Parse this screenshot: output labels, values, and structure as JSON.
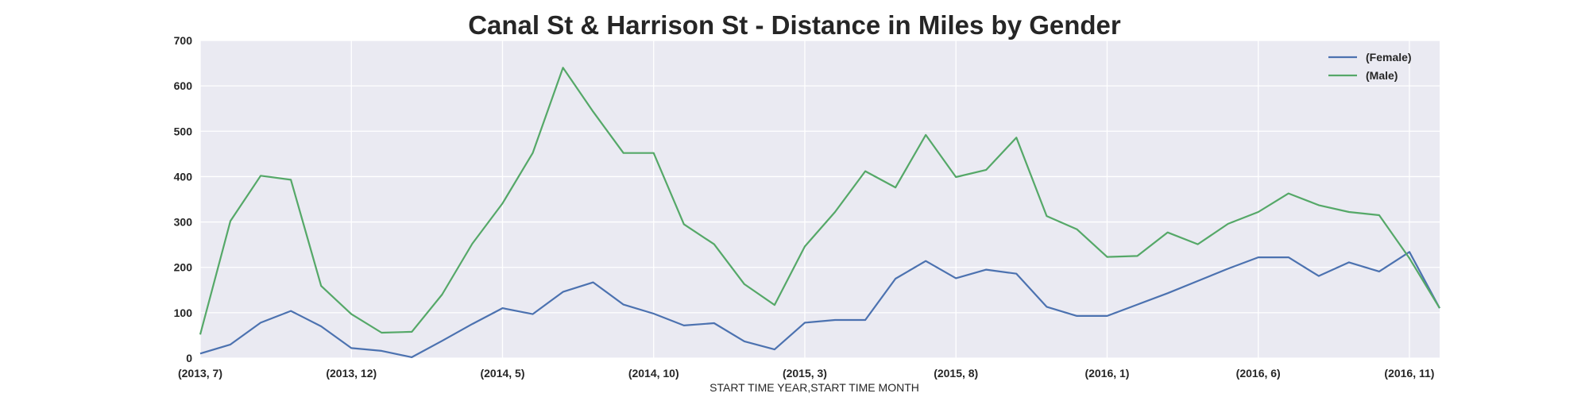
{
  "chart_data": {
    "type": "line",
    "title": "Canal St & Harrison St - Distance in Miles by Gender",
    "xlabel": "START TIME YEAR,START TIME MONTH",
    "ylabel": "",
    "ylim": [
      0,
      700
    ],
    "yticks": [
      0,
      100,
      200,
      300,
      400,
      500,
      600,
      700
    ],
    "x": [
      "(2013, 7)",
      "(2013, 8)",
      "(2013, 9)",
      "(2013, 10)",
      "(2013, 11)",
      "(2013, 12)",
      "(2014, 1)",
      "(2014, 2)",
      "(2014, 3)",
      "(2014, 4)",
      "(2014, 5)",
      "(2014, 6)",
      "(2014, 7)",
      "(2014, 8)",
      "(2014, 9)",
      "(2014, 10)",
      "(2014, 11)",
      "(2014, 12)",
      "(2015, 1)",
      "(2015, 2)",
      "(2015, 3)",
      "(2015, 4)",
      "(2015, 5)",
      "(2015, 6)",
      "(2015, 7)",
      "(2015, 8)",
      "(2015, 9)",
      "(2015, 10)",
      "(2015, 11)",
      "(2015, 12)",
      "(2016, 1)",
      "(2016, 2)",
      "(2016, 3)",
      "(2016, 4)",
      "(2016, 5)",
      "(2016, 6)",
      "(2016, 7)",
      "(2016, 8)",
      "(2016, 9)",
      "(2016, 10)",
      "(2016, 11)",
      "(2016, 12)"
    ],
    "xtick_labels": [
      "(2013, 7)",
      "(2013, 12)",
      "(2014, 5)",
      "(2014, 10)",
      "(2015, 3)",
      "(2015, 8)",
      "(2016, 1)",
      "(2016, 6)",
      "(2016, 11)"
    ],
    "xtick_indices": [
      0,
      5,
      10,
      15,
      20,
      25,
      30,
      35,
      40
    ],
    "series": [
      {
        "name": "(Female)",
        "color": "#4c72b0",
        "values": [
          10,
          30,
          78,
          104,
          70,
          22,
          16,
          2,
          38,
          75,
          110,
          97,
          146,
          167,
          118,
          98,
          72,
          77,
          37,
          19,
          78,
          84,
          84,
          175,
          214,
          176,
          195,
          186,
          113,
          93,
          93,
          118,
          143,
          170,
          197,
          222,
          222,
          181,
          211,
          191,
          234,
          110
        ]
      },
      {
        "name": "(Male)",
        "color": "#55a868",
        "values": [
          52,
          302,
          402,
          393,
          159,
          97,
          56,
          58,
          140,
          252,
          341,
          452,
          640,
          543,
          452,
          452,
          295,
          251,
          163,
          117,
          246,
          322,
          412,
          376,
          492,
          399,
          415,
          486,
          313,
          284,
          223,
          225,
          277,
          251,
          296,
          322,
          363,
          337,
          322,
          315,
          220,
          110
        ]
      }
    ],
    "grid": true,
    "legend": "top-right"
  }
}
